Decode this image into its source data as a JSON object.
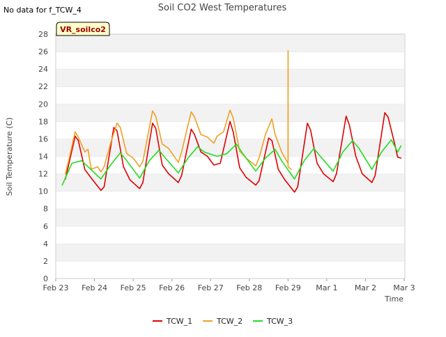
{
  "nodata_note": "No data for f_TCW_4",
  "site_badge": "VR_soilco2",
  "chart_data": {
    "type": "line",
    "title": "Soil CO2 West Temperatures",
    "xlabel": "Time",
    "ylabel": "Soil Temperature (C)",
    "xlim": [
      "Feb 23",
      "Mar 3"
    ],
    "x_ticks": [
      "Feb 23",
      "Feb 24",
      "Feb 25",
      "Feb 26",
      "Feb 27",
      "Feb 28",
      "Feb 29",
      "Mar 1",
      "Mar 2",
      "Mar 3"
    ],
    "ylim": [
      0,
      28
    ],
    "y_ticks": [
      0,
      2,
      4,
      6,
      8,
      10,
      12,
      14,
      16,
      18,
      20,
      22,
      24,
      26,
      28
    ],
    "grid": "horizontal bands",
    "legend_position": "bottom",
    "series": [
      {
        "name": "TCW_1",
        "color": "#dd0000",
        "x": [
          "Feb 23 06:00",
          "Feb 23 12:00",
          "Feb 23 14:00",
          "Feb 23 18:00",
          "Feb 23 22:00",
          "Feb 24 04:00",
          "Feb 24 06:00",
          "Feb 24 12:00",
          "Feb 24 14:00",
          "Feb 24 18:00",
          "Feb 24 22:00",
          "Feb 25 04:00",
          "Feb 25 06:00",
          "Feb 25 12:00",
          "Feb 25 14:00",
          "Feb 25 18:00",
          "Feb 25 22:00",
          "Feb 26 04:00",
          "Feb 26 06:00",
          "Feb 26 12:00",
          "Feb 26 14:00",
          "Feb 26 18:00",
          "Feb 26 22:00",
          "Feb 27 02:00",
          "Feb 27 06:00",
          "Feb 27 12:00",
          "Feb 27 14:00",
          "Feb 27 18:00",
          "Feb 27 22:00",
          "Feb 28 04:00",
          "Feb 28 06:00",
          "Feb 28 12:00",
          "Feb 28 14:00",
          "Feb 28 18:00",
          "Feb 28 22:00",
          "Feb 29 04:00",
          "Feb 29 06:00",
          "Feb 29 12:00",
          "Feb 29 14:00",
          "Feb 29 18:00",
          "Feb 29 22:00",
          "Mar 1 04:00",
          "Mar 1 06:00",
          "Mar 1 12:00",
          "Mar 1 14:00",
          "Mar 1 18:00",
          "Mar 1 22:00",
          "Mar 2 04:00",
          "Mar 2 06:00",
          "Mar 2 12:00",
          "Mar 2 14:00",
          "Mar 2 18:00",
          "Mar 2 20:00",
          "Mar 2 22:00"
        ],
        "values": [
          11.4,
          16.3,
          15.8,
          12.5,
          11.5,
          10.1,
          10.5,
          17.3,
          16.9,
          12.8,
          11.3,
          10.3,
          11.0,
          17.8,
          17.2,
          13.0,
          12.0,
          11.0,
          11.8,
          17.1,
          16.5,
          14.5,
          14.0,
          13.0,
          13.2,
          18.0,
          16.8,
          12.7,
          11.6,
          10.7,
          11.2,
          16.1,
          15.8,
          12.5,
          11.3,
          9.9,
          10.5,
          17.8,
          17.0,
          13.2,
          12.0,
          11.1,
          12.0,
          18.6,
          17.6,
          14.0,
          12.0,
          11.0,
          11.8,
          19.0,
          18.5,
          15.5,
          13.9,
          13.8
        ]
      },
      {
        "name": "TCW_2",
        "color": "#f0a020",
        "x": [
          "Feb 23 06:00",
          "Feb 23 08:00",
          "Feb 23 12:00",
          "Feb 23 14:00",
          "Feb 23 18:00",
          "Feb 23 20:00",
          "Feb 23 22:00",
          "Feb 24 02:00",
          "Feb 24 04:00",
          "Feb 24 06:00",
          "Feb 24 10:00",
          "Feb 24 14:00",
          "Feb 24 16:00",
          "Feb 24 20:00",
          "Feb 25 00:00",
          "Feb 25 04:00",
          "Feb 25 06:00",
          "Feb 25 12:00",
          "Feb 25 14:00",
          "Feb 25 18:00",
          "Feb 25 22:00",
          "Feb 26 04:00",
          "Feb 26 06:00",
          "Feb 26 12:00",
          "Feb 26 14:00",
          "Feb 26 18:00",
          "Feb 26 22:00",
          "Feb 27 02:00",
          "Feb 27 04:00",
          "Feb 27 08:00",
          "Feb 27 12:00",
          "Feb 27 14:00",
          "Feb 27 18:00",
          "Feb 27 22:00",
          "Feb 28 04:00",
          "Feb 28 06:00",
          "Feb 28 10:00",
          "Feb 28 14:00",
          "Feb 28 16:00",
          "Feb 28 20:00",
          "Feb 29 00:00",
          "Feb 29 00:01",
          "Feb 29 00:02",
          "Feb 29 02:00"
        ],
        "values": [
          12.0,
          13.5,
          16.8,
          16.2,
          14.5,
          14.8,
          12.5,
          12.8,
          12.2,
          12.8,
          15.5,
          17.8,
          17.3,
          14.3,
          13.8,
          12.8,
          13.4,
          19.2,
          18.6,
          15.4,
          14.9,
          13.3,
          14.5,
          19.1,
          18.5,
          16.5,
          16.2,
          15.5,
          16.3,
          16.8,
          19.3,
          18.4,
          14.6,
          13.8,
          12.9,
          13.8,
          16.5,
          18.3,
          16.5,
          14.5,
          13.2,
          26.1,
          12.8,
          12.5
        ]
      },
      {
        "name": "TCW_3",
        "color": "#22dd22",
        "x": [
          "Feb 23 04:00",
          "Feb 23 10:00",
          "Feb 23 16:00",
          "Feb 23 20:00",
          "Feb 24 04:00",
          "Feb 24 10:00",
          "Feb 24 16:00",
          "Feb 24 20:00",
          "Feb 25 04:00",
          "Feb 25 10:00",
          "Feb 25 16:00",
          "Feb 25 20:00",
          "Feb 26 04:00",
          "Feb 26 10:00",
          "Feb 26 16:00",
          "Feb 26 20:00",
          "Feb 27 04:00",
          "Feb 27 10:00",
          "Feb 27 16:00",
          "Feb 27 20:00",
          "Feb 28 04:00",
          "Feb 28 10:00",
          "Feb 28 16:00",
          "Feb 28 20:00",
          "Feb 29 04:00",
          "Feb 29 10:00",
          "Feb 29 16:00",
          "Feb 29 20:00",
          "Mar 1 04:00",
          "Mar 1 10:00",
          "Mar 1 16:00",
          "Mar 1 20:00",
          "Mar 2 04:00",
          "Mar 2 10:00",
          "Mar 2 16:00",
          "Mar 2 20:00",
          "Mar 2 22:00"
        ],
        "values": [
          10.7,
          13.2,
          13.5,
          12.8,
          11.4,
          13.0,
          14.4,
          13.5,
          11.5,
          13.5,
          14.7,
          13.8,
          12.1,
          13.8,
          15.1,
          14.5,
          14.0,
          14.3,
          15.4,
          14.3,
          12.3,
          13.8,
          14.8,
          13.5,
          11.4,
          13.5,
          14.9,
          14.0,
          12.3,
          14.5,
          15.8,
          14.9,
          12.5,
          14.5,
          15.9,
          14.5,
          15.2
        ]
      }
    ]
  }
}
